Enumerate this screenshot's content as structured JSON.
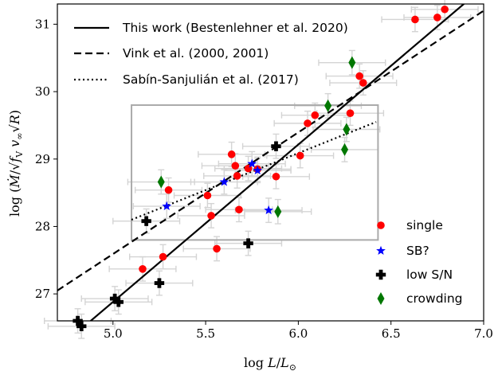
{
  "chart_data": {
    "type": "scatter",
    "xlabel": "log L/L⊙",
    "ylabel": "log (Ṁ/√f_V v∞ √R)",
    "xlim": [
      4.7,
      7.0
    ],
    "ylim": [
      26.6,
      31.3
    ],
    "xticks": [
      "5.0",
      "5.5",
      "6.0",
      "6.5",
      "7.0"
    ],
    "yticks": [
      "27",
      "28",
      "29",
      "30",
      "31"
    ],
    "lines": [
      {
        "name": "This work (Bestenlehner et al. 2020)",
        "style": "solid",
        "x": [
          4.7,
          7.0
        ],
        "y": [
          26.18,
          31.55
        ]
      },
      {
        "name": "Vink et al. (2000, 2001)",
        "style": "dashed",
        "x": [
          4.7,
          7.0
        ],
        "y": [
          27.05,
          31.2
        ]
      },
      {
        "name": "Sabín-Sanjulián et al. (2017)",
        "style": "dotted",
        "x": [
          5.1,
          6.42
        ],
        "y": [
          28.1,
          29.55
        ]
      }
    ],
    "box": {
      "x": [
        5.1,
        6.43
      ],
      "y": [
        27.8,
        29.8
      ]
    },
    "series": [
      {
        "name": "single",
        "marker": "circle",
        "color": "#ff0000",
        "x": [
          6.63,
          6.75,
          6.79,
          6.33,
          6.35,
          6.28,
          6.09,
          6.05,
          6.01,
          5.88,
          5.73,
          5.78,
          5.64,
          5.66,
          5.67,
          5.68,
          5.51,
          5.53,
          5.3,
          5.27,
          5.16,
          5.56
        ],
        "y": [
          31.07,
          31.1,
          31.22,
          30.23,
          30.13,
          29.68,
          29.65,
          29.53,
          29.05,
          28.74,
          28.86,
          28.85,
          29.07,
          28.9,
          28.75,
          28.25,
          28.46,
          28.16,
          28.54,
          27.55,
          27.37,
          27.67
        ]
      },
      {
        "name": "SB?",
        "marker": "star",
        "color": "#0000ff",
        "x": [
          5.29,
          5.6,
          5.75,
          5.78,
          5.84
        ],
        "y": [
          28.3,
          28.66,
          28.93,
          28.83,
          28.24
        ]
      },
      {
        "name": "low S/N",
        "marker": "plus",
        "color": "#000000",
        "x": [
          4.81,
          4.83,
          5.01,
          5.03,
          5.25,
          5.18,
          5.73,
          5.88
        ],
        "y": [
          26.6,
          26.52,
          26.93,
          26.88,
          27.16,
          28.08,
          27.75,
          29.19
        ]
      },
      {
        "name": "crowding",
        "marker": "diamond",
        "color": "#007700",
        "x": [
          6.29,
          6.16,
          6.26,
          6.25,
          5.26,
          5.89
        ],
        "y": [
          30.43,
          29.79,
          29.44,
          29.14,
          28.66,
          28.22
        ]
      }
    ],
    "legend_upper": "top-left",
    "legend_lower": "bottom-right"
  }
}
